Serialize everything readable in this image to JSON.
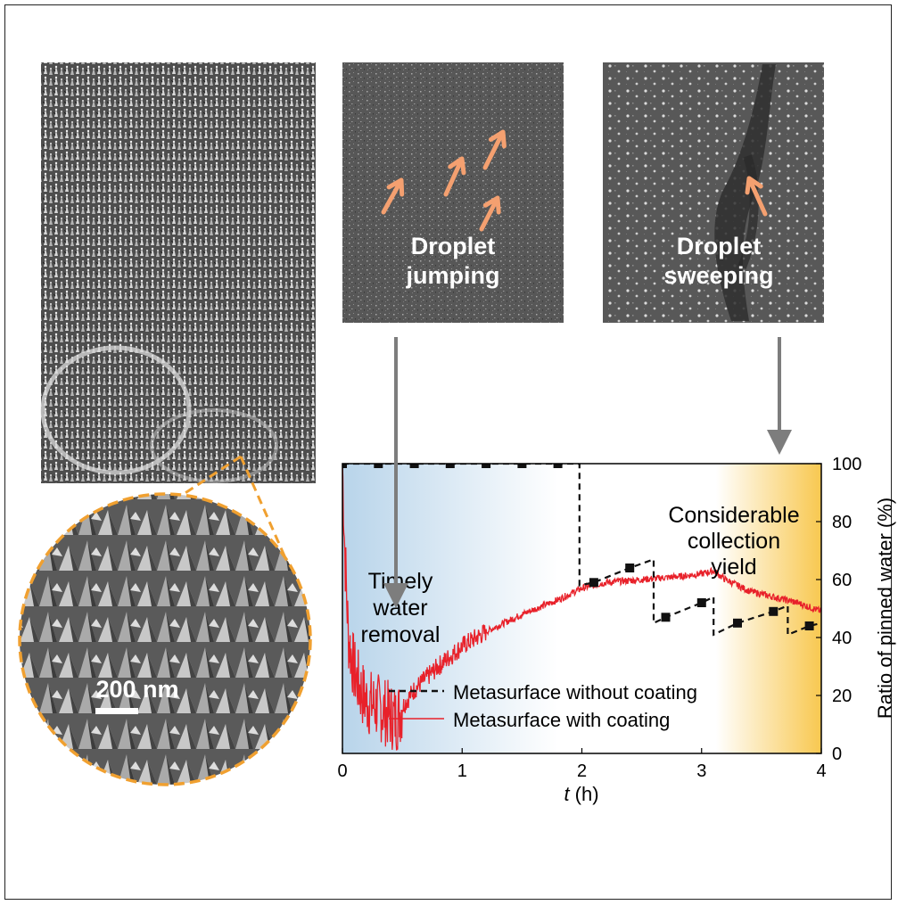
{
  "panels": {
    "jumping_label": [
      "Droplet",
      "jumping"
    ],
    "sweeping_label": [
      "Droplet",
      "sweeping"
    ],
    "scale_bar": "200 nm"
  },
  "annotations": {
    "left": [
      "Timely",
      "water",
      "removal"
    ],
    "right": [
      "Considerable",
      "collection",
      "yield"
    ]
  },
  "colors": {
    "arrow": "#f4a070",
    "zoom_outline": "#f0a030",
    "bg_left": "#b8d4ea",
    "bg_right": "#f8c850",
    "coated_line": "#e8212a",
    "uncoated_line": "#111111",
    "connector_arrow": "#7d7d7d"
  },
  "chart_data": {
    "type": "line",
    "xlabel": "t (h)",
    "ylabel": "Ratio of pinned water (%)",
    "xlim": [
      0,
      4
    ],
    "ylim": [
      0,
      100
    ],
    "xticks": [
      "0",
      "1",
      "2",
      "3",
      "4"
    ],
    "yticks": [
      "0",
      "20",
      "40",
      "60",
      "80",
      "100"
    ],
    "y_axis_side": "right",
    "grid": false,
    "legend_position": "lower-center",
    "series": [
      {
        "name": "Metasurface without coating",
        "style": "dashed-with-square-markers",
        "color": "#111111",
        "x": [
          0,
          0.3,
          0.6,
          0.9,
          1.2,
          1.5,
          1.8,
          1.98,
          1.98,
          2.1,
          2.4,
          2.6,
          2.6,
          2.7,
          3.0,
          3.1,
          3.1,
          3.3,
          3.6,
          3.72,
          3.72,
          3.9,
          4.0
        ],
        "y": [
          100,
          100,
          100,
          100,
          100,
          100,
          100,
          100,
          58,
          59,
          64,
          67,
          45,
          47,
          52,
          54,
          41,
          45,
          49,
          51,
          41,
          44,
          45
        ],
        "markers_x": [
          0,
          0.3,
          0.6,
          0.9,
          1.2,
          1.5,
          1.8,
          2.1,
          2.4,
          2.7,
          3.0,
          3.3,
          3.6,
          3.9
        ],
        "markers_y": [
          100,
          100,
          100,
          100,
          100,
          100,
          100,
          59,
          64,
          47,
          52,
          45,
          49,
          44
        ]
      },
      {
        "name": "Metasurface with coating",
        "style": "solid-noisy",
        "color": "#e8212a",
        "x": [
          0,
          0.02,
          0.05,
          0.1,
          0.15,
          0.2,
          0.3,
          0.4,
          0.45,
          0.5,
          0.6,
          0.8,
          1.0,
          1.2,
          1.5,
          1.8,
          2.0,
          2.2,
          2.5,
          2.8,
          3.0,
          3.1,
          3.2,
          3.4,
          3.6,
          3.8,
          4.0
        ],
        "y": [
          100,
          70,
          40,
          28,
          22,
          18,
          16,
          13,
          12,
          16,
          22,
          30,
          37,
          42,
          48,
          53,
          57,
          59,
          60,
          61,
          62,
          63,
          60,
          56,
          54,
          52,
          49
        ]
      }
    ]
  }
}
